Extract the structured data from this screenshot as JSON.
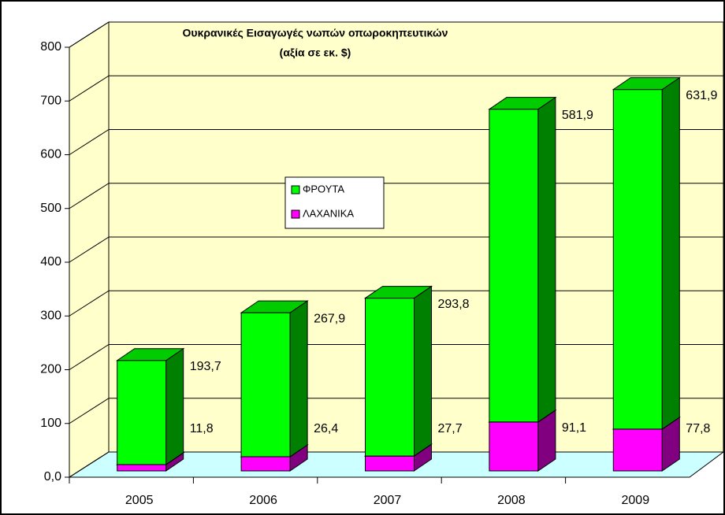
{
  "chart_data": {
    "type": "bar3d_stacked",
    "title": "Ουκρανικές Εισαγωγές νωπών οπωροκηπευτικών",
    "subtitle": "(αξία σε εκ. $)",
    "categories": [
      "2005",
      "2006",
      "2007",
      "2008",
      "2009"
    ],
    "series": [
      {
        "name": "ΦΡΟΥΤΑ",
        "color": "#00ff00",
        "values": [
          193.7,
          267.9,
          293.8,
          581.9,
          631.9
        ],
        "value_labels": [
          "193,7",
          "267,9",
          "293,8",
          "581,9",
          "631,9"
        ]
      },
      {
        "name": "ΛΑΧΑΝΙΚΑ",
        "color": "#ff00ff",
        "values": [
          11.8,
          26.4,
          27.7,
          91.1,
          77.8
        ],
        "value_labels": [
          "11,8",
          "26,4",
          "27,7",
          "91,1",
          "77,8"
        ]
      }
    ],
    "ylim": [
      0,
      800
    ],
    "yticks": [
      {
        "value": 0,
        "label": "0,0"
      },
      100,
      200,
      300,
      400,
      500,
      600,
      700,
      800
    ],
    "grid": true,
    "stacked": true
  }
}
